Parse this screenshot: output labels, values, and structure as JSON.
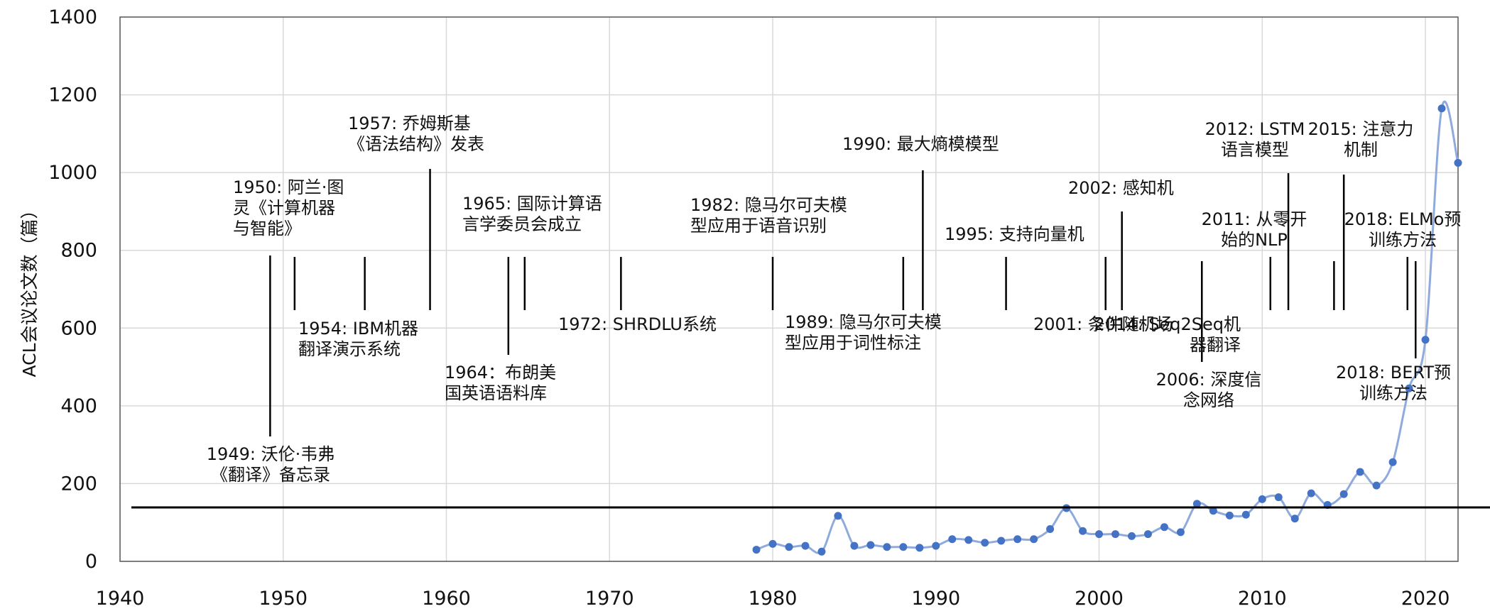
{
  "chart_data": {
    "type": "line",
    "ylabel": "ACL会议论文数（篇）",
    "xlabel": "",
    "title": "",
    "xlim": [
      1940,
      2022
    ],
    "ylim": [
      0,
      1400
    ],
    "x_ticks": [
      1940,
      1950,
      1960,
      1970,
      1980,
      1990,
      2000,
      2010,
      2020
    ],
    "y_ticks": [
      0,
      200,
      400,
      600,
      800,
      1000,
      1200,
      1400
    ],
    "grid": true,
    "legend": "none",
    "series": [
      {
        "color": "#4472c4",
        "line_color": "#8faadc",
        "points": [
          [
            1979,
            30
          ],
          [
            1980,
            45
          ],
          [
            1981,
            37
          ],
          [
            1982,
            40
          ],
          [
            1983,
            25
          ],
          [
            1984,
            117
          ],
          [
            1985,
            40
          ],
          [
            1986,
            42
          ],
          [
            1987,
            37
          ],
          [
            1988,
            37
          ],
          [
            1989,
            35
          ],
          [
            1990,
            40
          ],
          [
            1991,
            57
          ],
          [
            1992,
            55
          ],
          [
            1993,
            48
          ],
          [
            1994,
            53
          ],
          [
            1995,
            57
          ],
          [
            1996,
            57
          ],
          [
            1997,
            83
          ],
          [
            1998,
            137
          ],
          [
            1999,
            78
          ],
          [
            2000,
            70
          ],
          [
            2001,
            70
          ],
          [
            2002,
            65
          ],
          [
            2003,
            70
          ],
          [
            2004,
            88
          ],
          [
            2005,
            75
          ],
          [
            2006,
            148
          ],
          [
            2007,
            130
          ],
          [
            2008,
            118
          ],
          [
            2009,
            120
          ],
          [
            2010,
            160
          ],
          [
            2011,
            165
          ],
          [
            2012,
            110
          ],
          [
            2013,
            175
          ],
          [
            2014,
            145
          ],
          [
            2015,
            173
          ],
          [
            2016,
            230
          ],
          [
            2017,
            195
          ],
          [
            2018,
            255
          ],
          [
            2019,
            445
          ],
          [
            2020,
            570
          ],
          [
            2021,
            1165
          ],
          [
            2022,
            1025
          ]
        ]
      }
    ],
    "timeline": {
      "baseline_y": 715,
      "events": [
        {
          "year": 1949.2,
          "dir": "down",
          "lines": [
            "1949: 沃伦·韦弗",
            "《翻译》备忘录"
          ]
        },
        {
          "year": 1950.7,
          "dir": "up",
          "lines": [
            "1950: 阿兰·图",
            "灵《计算机器",
            "与智能》"
          ]
        },
        {
          "year": 1955,
          "dir": "down",
          "lines": [
            "1954: IBM机器",
            "翻译演示系统"
          ]
        },
        {
          "year": 1959,
          "dir": "up",
          "lines": [
            "1957:  乔姆斯基",
            "《语法结构》发表"
          ]
        },
        {
          "year": 1963.8,
          "dir": "down",
          "lines": [
            "1964：布朗美",
            "国英语语料库"
          ]
        },
        {
          "year": 1964.8,
          "dir": "up",
          "lines": [
            "1965: 国际计算语",
            "言学委员会成立"
          ]
        },
        {
          "year": 1970.7,
          "dir": "down",
          "lines": [
            "1972: SHRDLU系统"
          ]
        },
        {
          "year": 1980,
          "dir": "up",
          "lines": [
            "1982: 隐马尔可夫模",
            "型应用于语音识别"
          ]
        },
        {
          "year": 1988,
          "dir": "down",
          "lines": [
            "1989: 隐马尔可夫模",
            "型应用于词性标注"
          ]
        },
        {
          "year": 1989.2,
          "dir": "up",
          "lines": [
            "1990: 最大熵模模型"
          ]
        },
        {
          "year": 1994.3,
          "dir": "up",
          "lines": [
            "1995: 支持向量机"
          ]
        },
        {
          "year": 2000.4,
          "dir": "down",
          "lines": [
            "2001: 条件随机场"
          ]
        },
        {
          "year": 2001.4,
          "dir": "up",
          "lines": [
            "2002: 感知机"
          ]
        },
        {
          "year": 2006.3,
          "dir": "down",
          "lines": [
            "2006: 深度信",
            "念网络"
          ]
        },
        {
          "year": 2010.5,
          "dir": "up",
          "lines": [
            "2011: 从零开",
            "始的NLP"
          ]
        },
        {
          "year": 2011.6,
          "dir": "up",
          "lines": [
            "2012: LSTM",
            "语言模型"
          ]
        },
        {
          "year": 2014.4,
          "dir": "down",
          "lines": [
            "2014: Seq2Seq机",
            "器翻译"
          ]
        },
        {
          "year": 2015,
          "dir": "up",
          "lines": [
            "2015: 注意力",
            "机制"
          ]
        },
        {
          "year": 2018.9,
          "dir": "up",
          "lines": [
            "2018: ELMo预",
            "训练方法"
          ]
        },
        {
          "year": 2019.4,
          "dir": "down",
          "lines": [
            "2018: BERT预",
            "训练方法"
          ]
        }
      ]
    }
  }
}
